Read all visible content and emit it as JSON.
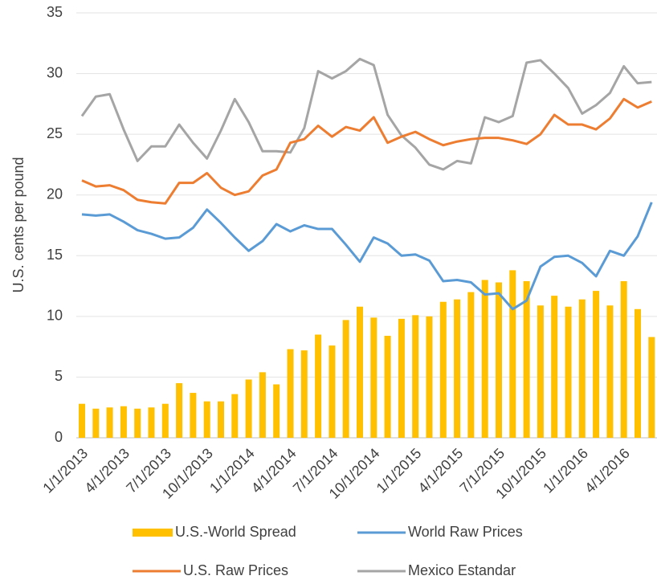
{
  "chart_data": {
    "type": "combo",
    "y_label": "U.S. cents per pound",
    "categories": [
      "1/1/2013",
      null,
      null,
      "4/1/2013",
      null,
      null,
      "7/1/2013",
      null,
      null,
      "10/1/2013",
      null,
      null,
      "1/1/2014",
      null,
      null,
      "4/1/2014",
      null,
      null,
      "7/1/2014",
      null,
      null,
      "10/1/2014",
      null,
      null,
      "1/1/2015",
      null,
      null,
      "4/1/2015",
      null,
      null,
      "7/1/2015",
      null,
      null,
      "10/1/2015",
      null,
      null,
      "1/1/2016",
      null,
      null,
      "4/1/2016",
      null,
      null
    ],
    "series": [
      {
        "name": "U.S.-World Spread",
        "type": "bar",
        "color": "#FFC000",
        "values": [
          2.8,
          2.4,
          2.5,
          2.6,
          2.4,
          2.5,
          2.8,
          4.5,
          3.7,
          3.0,
          3.0,
          3.6,
          4.8,
          5.4,
          4.4,
          7.3,
          7.2,
          8.5,
          7.6,
          9.7,
          10.8,
          9.9,
          8.4,
          9.8,
          10.1,
          10.0,
          11.2,
          11.4,
          12.0,
          13.0,
          12.8,
          13.8,
          12.9,
          10.9,
          11.7,
          10.8,
          11.4,
          12.1,
          10.9,
          12.9,
          10.6,
          8.3
        ]
      },
      {
        "name": "World Raw Prices",
        "type": "line",
        "color": "#5B9BD5",
        "values": [
          18.4,
          18.3,
          18.4,
          17.8,
          17.1,
          16.8,
          16.4,
          16.5,
          17.3,
          18.8,
          17.7,
          16.5,
          15.4,
          16.2,
          17.6,
          17.0,
          17.5,
          17.2,
          17.2,
          15.9,
          14.5,
          16.5,
          16.0,
          15.0,
          15.1,
          14.6,
          12.9,
          13.0,
          12.8,
          11.8,
          11.9,
          10.6,
          11.3,
          14.1,
          14.9,
          15.0,
          14.4,
          13.3,
          15.4,
          15.0,
          16.6,
          19.4
        ]
      },
      {
        "name": "U.S. Raw Prices",
        "type": "line",
        "color": "#ED7D31",
        "values": [
          21.2,
          20.7,
          20.8,
          20.4,
          19.6,
          19.4,
          19.3,
          21.0,
          21.0,
          21.8,
          20.6,
          20.0,
          20.3,
          21.6,
          22.1,
          24.3,
          24.6,
          25.7,
          24.8,
          25.6,
          25.3,
          26.4,
          24.3,
          24.8,
          25.2,
          24.6,
          24.1,
          24.4,
          24.6,
          24.7,
          24.7,
          24.5,
          24.2,
          25.0,
          26.6,
          25.8,
          25.8,
          25.4,
          26.3,
          27.9,
          27.2,
          27.7
        ]
      },
      {
        "name": "Mexico Estandar",
        "type": "line",
        "color": "#A5A5A5",
        "values": [
          26.5,
          28.1,
          28.3,
          25.4,
          22.8,
          24.0,
          24.0,
          25.8,
          24.3,
          23.0,
          25.3,
          27.9,
          26.0,
          23.6,
          23.6,
          23.5,
          25.5,
          30.2,
          29.6,
          30.2,
          31.2,
          30.7,
          26.6,
          24.9,
          23.9,
          22.5,
          22.1,
          22.8,
          22.6,
          26.4,
          26.0,
          26.5,
          30.9,
          31.1,
          30.0,
          28.8,
          26.7,
          27.4,
          28.4,
          30.6,
          29.2,
          29.3
        ]
      }
    ],
    "ylim": [
      0,
      35
    ],
    "yticks": [
      0,
      5,
      10,
      15,
      20,
      25,
      30,
      35
    ],
    "grid": true,
    "legend": "bottom"
  }
}
